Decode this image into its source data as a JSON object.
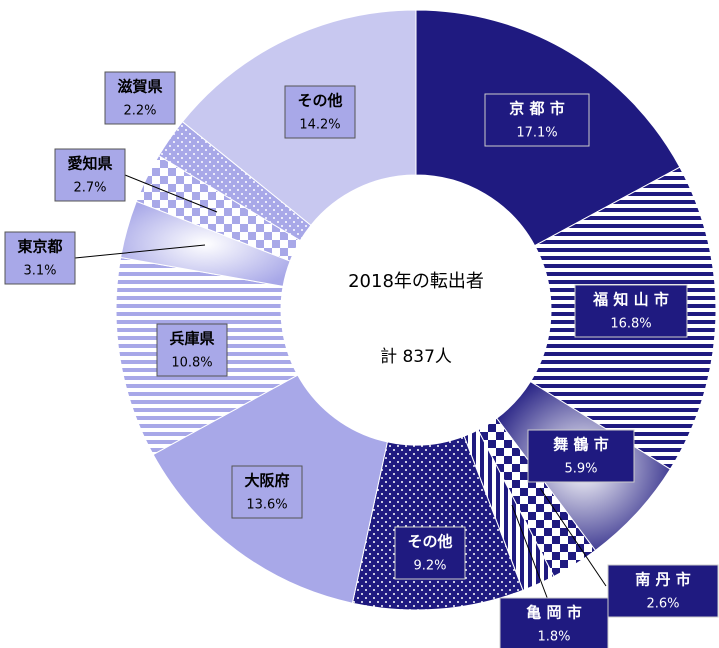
{
  "chart_data": {
    "type": "donut",
    "center_title": "2018年の転出者",
    "center_total": "計 837人",
    "categories": [
      "京 都 市",
      "福 知 山 市",
      "舞 鶴 市",
      "南 丹 市",
      "亀 岡 市",
      "その他",
      "大阪府",
      "兵庫県",
      "東京都",
      "愛知県",
      "滋賀県",
      "その他"
    ],
    "values": [
      17.1,
      16.8,
      5.9,
      2.6,
      1.8,
      9.2,
      13.6,
      10.8,
      3.1,
      2.7,
      2.2,
      14.2
    ],
    "value_labels": [
      "17.1%",
      "16.8%",
      "5.9%",
      "2.6%",
      "1.8%",
      "9.2%",
      "13.6%",
      "10.8%",
      "3.1%",
      "2.7%",
      "2.2%",
      "14.2%"
    ],
    "colors": [
      "#1f1a80",
      "#1f1a80",
      "#1f1a80",
      "#1f1a80",
      "#1f1a80",
      "#1f1a80",
      "#a8a8e8",
      "#a8a8e8",
      "#a8a8e8",
      "#a8a8e8",
      "#a8a8e8",
      "#c8c8f0"
    ],
    "patterns": [
      "solid",
      "hstripes",
      "radial",
      "checker",
      "vstripes",
      "dots",
      "solid",
      "hstripes",
      "radial",
      "checker",
      "dots",
      "solid"
    ]
  }
}
